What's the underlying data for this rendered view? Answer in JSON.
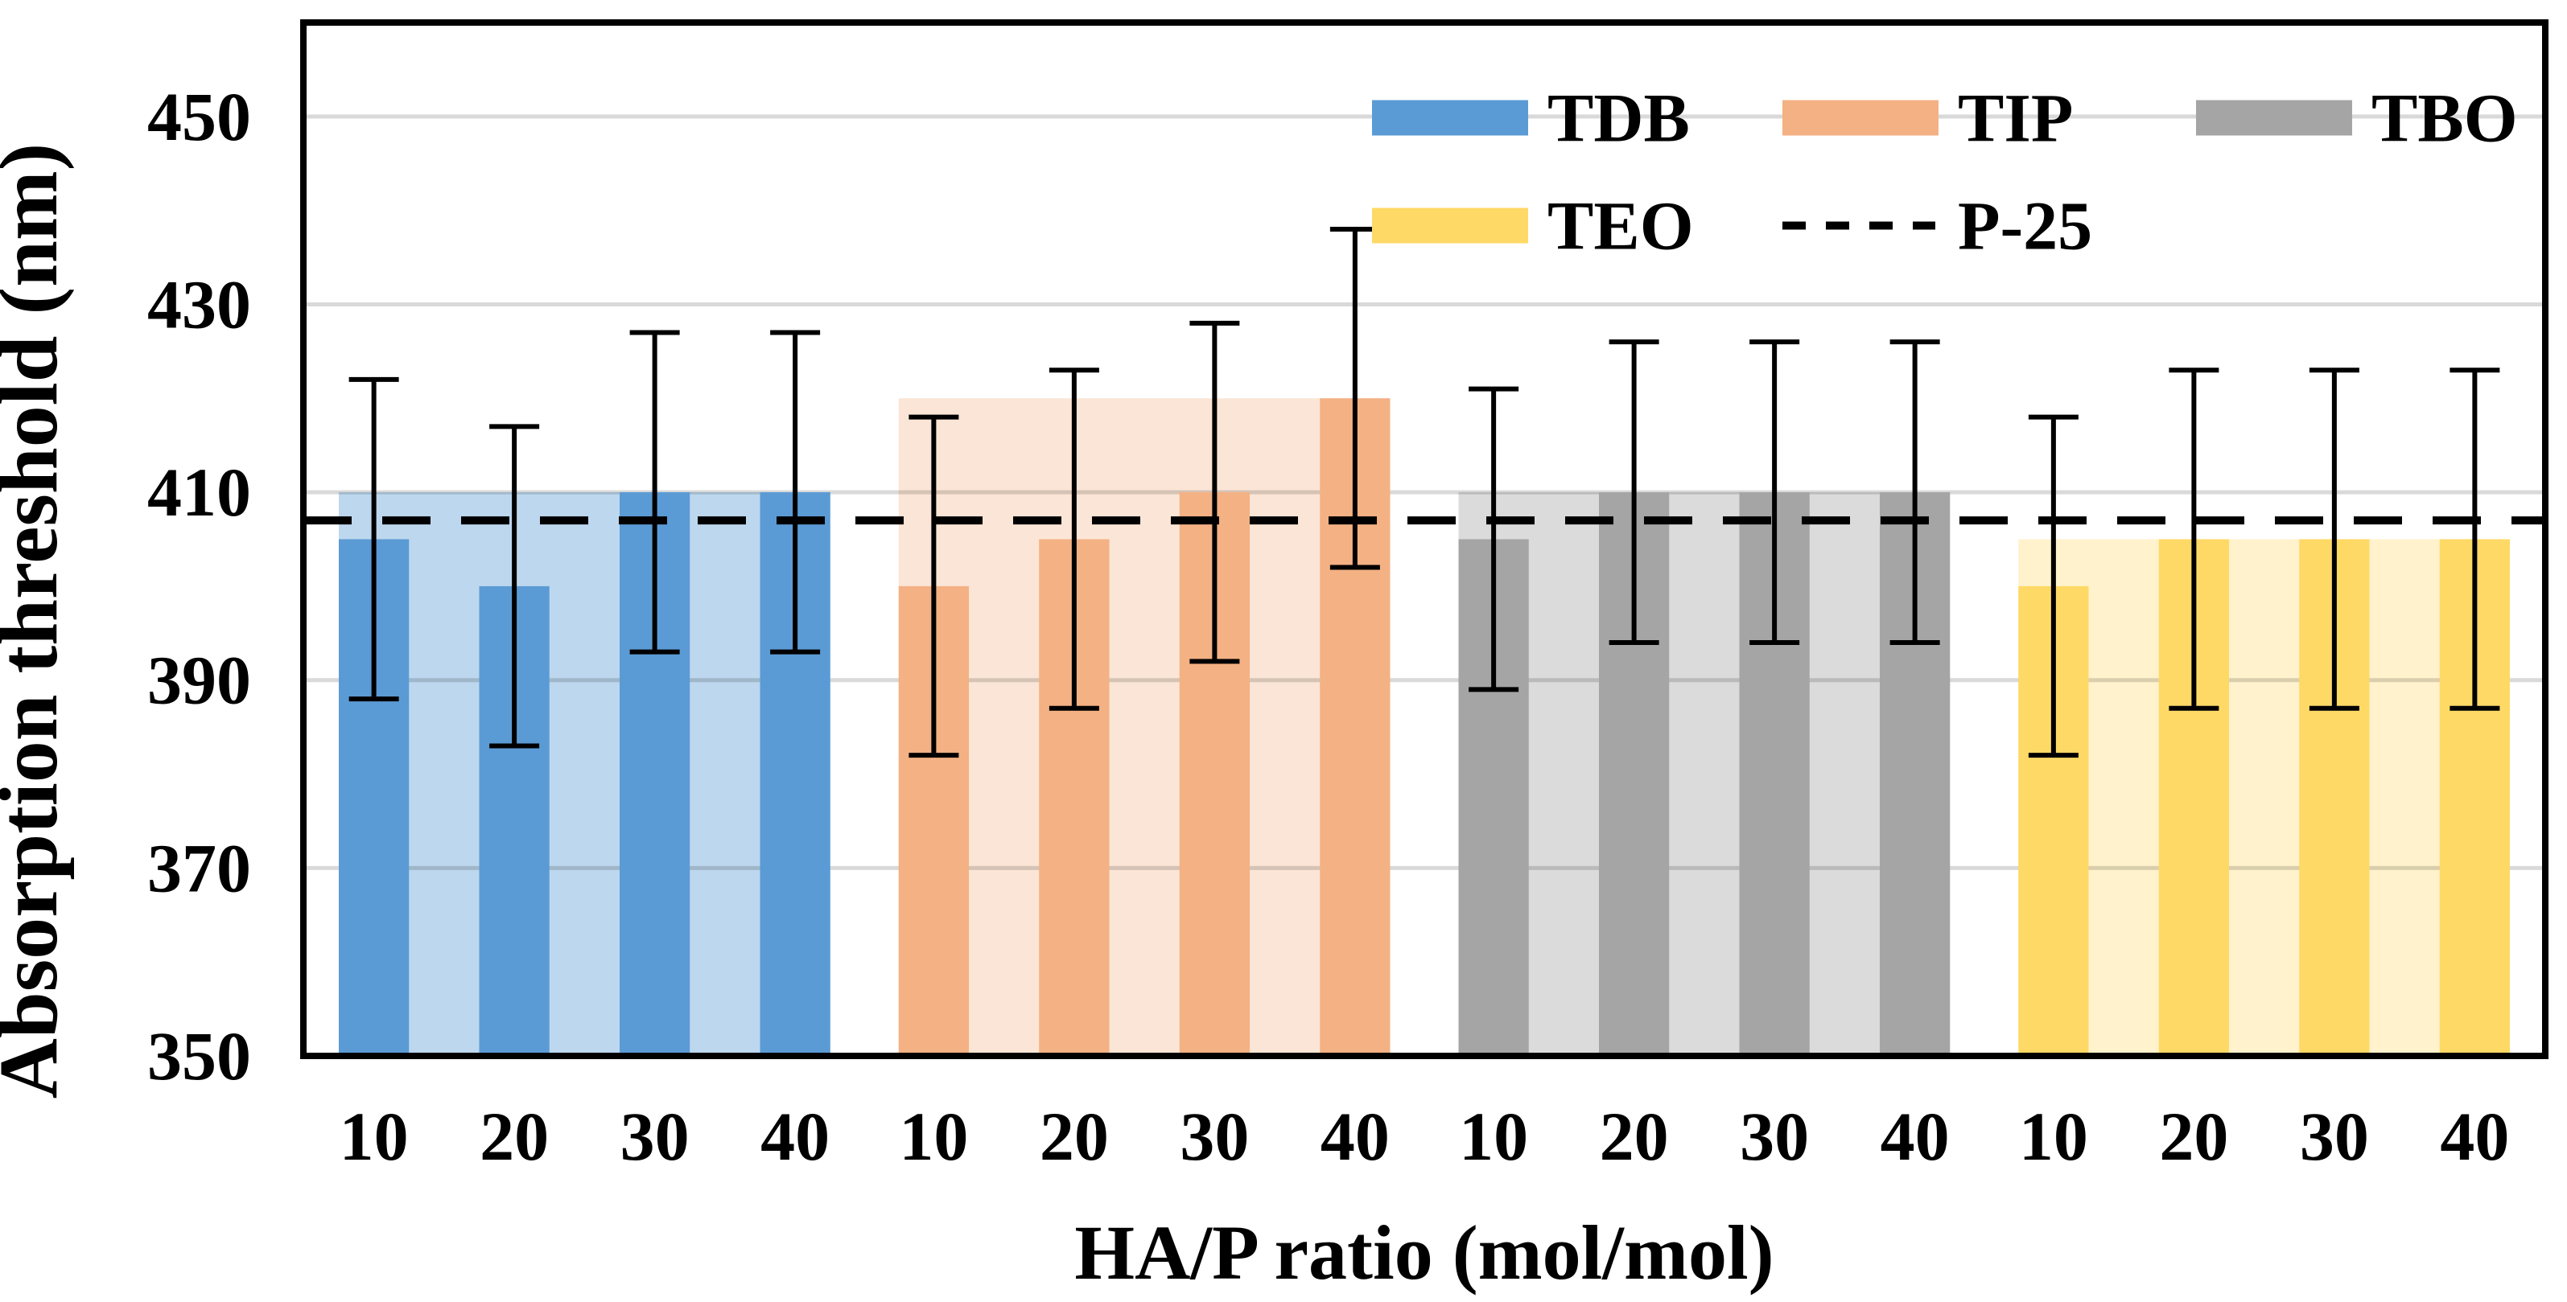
{
  "chart_data": {
    "type": "bar",
    "title": "",
    "xlabel": "HA/P ratio (mol/mol)",
    "ylabel": "Absorption threshold (nm)",
    "ylim": [
      350,
      460
    ],
    "yticks": [
      350,
      370,
      390,
      410,
      430,
      450
    ],
    "gridlines_at": [
      370,
      390,
      410,
      430,
      450
    ],
    "grid_on": true,
    "gridline_color": "#D9D9D9",
    "categories": [
      "10",
      "20",
      "30",
      "40"
    ],
    "series": [
      {
        "name": "TDB",
        "color": "#5B9BD5",
        "band_color": "#BDD7EE",
        "band_top": 410,
        "values": [
          405,
          400,
          410,
          410
        ],
        "errors": [
          17,
          17,
          17,
          17
        ]
      },
      {
        "name": "TIP",
        "color": "#F4B183",
        "band_color": "#FBE5D6",
        "band_top": 420,
        "values": [
          400,
          405,
          410,
          420
        ],
        "errors": [
          18,
          18,
          18,
          18
        ]
      },
      {
        "name": "TBO",
        "color": "#A5A5A5",
        "band_color": "#DBDBDB",
        "band_top": 410,
        "values": [
          405,
          410,
          410,
          410
        ],
        "errors": [
          16,
          16,
          16,
          16
        ]
      },
      {
        "name": "TEO",
        "color": "#FFD966",
        "band_color": "#FFF2CC",
        "band_top": 405,
        "values": [
          400,
          405,
          405,
          405
        ],
        "errors": [
          18,
          18,
          18,
          18
        ]
      }
    ],
    "baseline": {
      "label": "P-25",
      "value": 407,
      "style": "dashed",
      "color": "#000000"
    },
    "legend": {
      "position": "top-right",
      "rows": [
        [
          "TDB",
          "TIP",
          "TBO"
        ],
        [
          "TEO",
          "P-25"
        ]
      ]
    },
    "error_bar_color": "#000000",
    "frame_color": "#000000"
  }
}
